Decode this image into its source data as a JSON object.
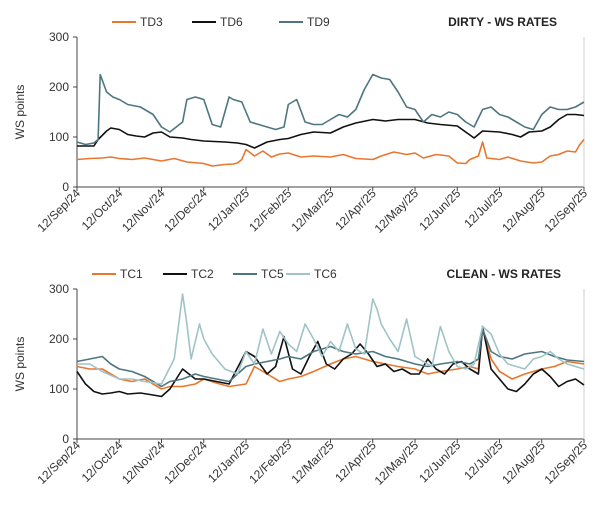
{
  "chart_data": [
    {
      "type": "line",
      "title": "DIRTY - WS RATES",
      "ylabel": "WS points",
      "xlabel": "",
      "ylim": [
        0,
        300
      ],
      "yticks": [
        0,
        100,
        200,
        300
      ],
      "grid": false,
      "legend_position": "top-left",
      "x_tick_labels": [
        "12/Sep/24",
        "12/Oct/24",
        "12/Nov/24",
        "12/Dec/24",
        "12/Jan/25",
        "12/Feb/25",
        "12/Mar/25",
        "12/Apr/25",
        "12/May/25",
        "12/Jun/25",
        "12/Jul/25",
        "12/Aug/25",
        "12/Sep/25"
      ],
      "series": [
        {
          "name": "TD3",
          "color": "#e8772e",
          "x": [
            0,
            0.3,
            0.6,
            0.8,
            1,
            1.3,
            1.6,
            2,
            2.3,
            2.6,
            3,
            3.2,
            3.5,
            3.7,
            3.8,
            3.9,
            4,
            4.2,
            4.4,
            4.6,
            4.8,
            5,
            5.3,
            5.6,
            6,
            6.3,
            6.6,
            7,
            7.2,
            7.5,
            7.8,
            8,
            8.2,
            8.5,
            8.8,
            9,
            9.2,
            9.3,
            9.5,
            9.6,
            9.7,
            10,
            10.2,
            10.5,
            10.8,
            11,
            11.2,
            11.4,
            11.6,
            11.8,
            11.9,
            12
          ],
          "y": [
            55,
            57,
            58,
            60,
            57,
            55,
            58,
            52,
            57,
            50,
            47,
            42,
            45,
            46,
            48,
            55,
            75,
            62,
            72,
            60,
            66,
            68,
            60,
            62,
            60,
            65,
            57,
            55,
            62,
            70,
            65,
            68,
            58,
            65,
            62,
            48,
            47,
            55,
            62,
            90,
            58,
            55,
            60,
            52,
            48,
            50,
            62,
            65,
            72,
            70,
            85,
            95
          ]
        },
        {
          "name": "TD6",
          "color": "#111111",
          "x": [
            0,
            0.4,
            0.5,
            0.7,
            0.8,
            1,
            1.2,
            1.4,
            1.6,
            1.8,
            2,
            2.2,
            2.5,
            2.7,
            3,
            3.5,
            3.8,
            4,
            4.2,
            4.5,
            4.8,
            5,
            5.3,
            5.6,
            6,
            6.3,
            6.6,
            7,
            7.3,
            7.6,
            8,
            8.3,
            8.6,
            9,
            9.4,
            9.6,
            10,
            10.3,
            10.5,
            10.7,
            11,
            11.2,
            11.4,
            11.6,
            11.8,
            12
          ],
          "y": [
            82,
            82,
            95,
            112,
            118,
            115,
            105,
            102,
            100,
            108,
            110,
            100,
            98,
            95,
            92,
            90,
            88,
            85,
            78,
            90,
            95,
            97,
            105,
            110,
            108,
            120,
            128,
            135,
            132,
            135,
            135,
            128,
            125,
            122,
            98,
            112,
            110,
            105,
            100,
            110,
            112,
            120,
            135,
            145,
            145,
            143
          ]
        },
        {
          "name": "TD9",
          "color": "#4e7680",
          "x": [
            0,
            0.2,
            0.4,
            0.5,
            0.55,
            0.7,
            0.85,
            1,
            1.2,
            1.5,
            1.8,
            2,
            2.2,
            2.5,
            2.6,
            2.8,
            3,
            3.2,
            3.4,
            3.6,
            3.7,
            3.9,
            4.1,
            4.3,
            4.5,
            4.7,
            4.9,
            5,
            5.2,
            5.4,
            5.6,
            5.8,
            6,
            6.2,
            6.4,
            6.6,
            6.8,
            7,
            7.2,
            7.4,
            7.6,
            7.8,
            8,
            8.2,
            8.4,
            8.6,
            8.8,
            9,
            9.2,
            9.4,
            9.6,
            9.8,
            10,
            10.2,
            10.4,
            10.6,
            10.8,
            11,
            11.2,
            11.4,
            11.6,
            11.8,
            12
          ],
          "y": [
            90,
            85,
            88,
            95,
            225,
            190,
            180,
            175,
            165,
            160,
            145,
            120,
            110,
            130,
            175,
            180,
            175,
            125,
            120,
            180,
            175,
            170,
            130,
            125,
            120,
            115,
            120,
            165,
            175,
            130,
            125,
            125,
            135,
            145,
            140,
            155,
            195,
            225,
            218,
            215,
            190,
            160,
            155,
            130,
            145,
            140,
            150,
            145,
            130,
            120,
            155,
            160,
            145,
            140,
            130,
            120,
            115,
            145,
            160,
            155,
            155,
            160,
            170
          ]
        }
      ]
    },
    {
      "type": "line",
      "title": "CLEAN - WS RATES",
      "ylabel": "WS points",
      "xlabel": "",
      "ylim": [
        0,
        300
      ],
      "yticks": [
        0,
        100,
        200,
        300
      ],
      "grid": false,
      "legend_position": "top-left",
      "x_tick_labels": [
        "12/Sep/24",
        "12/Oct/24",
        "12/Nov/24",
        "12/Dec/24",
        "12/Jan/25",
        "12/Feb/25",
        "12/Mar/25",
        "12/Apr/25",
        "12/May/25",
        "12/Jun/25",
        "12/Jul/25",
        "12/Aug/25",
        "12/Sep/25"
      ],
      "series": [
        {
          "name": "TC1",
          "color": "#e8772e",
          "x": [
            0,
            0.3,
            0.6,
            1,
            1.3,
            1.6,
            2,
            2.2,
            2.5,
            2.8,
            3,
            3.3,
            3.6,
            4,
            4.2,
            4.5,
            4.8,
            5,
            5.3,
            5.6,
            6,
            6.3,
            6.6,
            7,
            7.3,
            7.6,
            8,
            8.3,
            8.6,
            9,
            9.3,
            9.5,
            9.6,
            9.8,
            10,
            10.3,
            10.6,
            11,
            11.3,
            11.6,
            12
          ],
          "y": [
            145,
            140,
            140,
            120,
            115,
            120,
            100,
            105,
            105,
            110,
            120,
            112,
            105,
            110,
            145,
            130,
            115,
            120,
            125,
            135,
            150,
            160,
            165,
            155,
            150,
            145,
            140,
            130,
            135,
            140,
            145,
            140,
            220,
            160,
            135,
            120,
            130,
            140,
            145,
            155,
            150
          ]
        },
        {
          "name": "TC2",
          "color": "#111111",
          "x": [
            0,
            0.2,
            0.4,
            0.6,
            0.8,
            1,
            1.2,
            1.5,
            1.8,
            2,
            2.2,
            2.5,
            2.8,
            3,
            3.3,
            3.6,
            4,
            4.2,
            4.5,
            4.7,
            4.9,
            5.1,
            5.3,
            5.5,
            5.7,
            5.9,
            6.1,
            6.3,
            6.5,
            6.7,
            6.9,
            7.1,
            7.3,
            7.5,
            7.7,
            7.9,
            8.1,
            8.3,
            8.5,
            8.7,
            8.9,
            9.1,
            9.3,
            9.5,
            9.6,
            9.8,
            10,
            10.2,
            10.4,
            10.6,
            10.8,
            11,
            11.2,
            11.4,
            11.6,
            11.8,
            12
          ],
          "y": [
            135,
            110,
            95,
            90,
            92,
            95,
            90,
            92,
            88,
            85,
            100,
            140,
            120,
            120,
            115,
            110,
            175,
            165,
            130,
            145,
            205,
            140,
            130,
            165,
            195,
            150,
            140,
            160,
            170,
            190,
            170,
            145,
            150,
            135,
            140,
            130,
            130,
            160,
            140,
            130,
            150,
            155,
            140,
            130,
            225,
            140,
            120,
            100,
            95,
            110,
            130,
            140,
            125,
            105,
            115,
            120,
            108
          ]
        },
        {
          "name": "TC5",
          "color": "#4e7680",
          "x": [
            0,
            0.3,
            0.6,
            0.8,
            1,
            1.3,
            1.6,
            2,
            2.2,
            2.5,
            2.8,
            3,
            3.3,
            3.6,
            4,
            4.2,
            4.5,
            4.8,
            5,
            5.3,
            5.6,
            6,
            6.3,
            6.6,
            7,
            7.3,
            7.6,
            8,
            8.3,
            8.6,
            9,
            9.3,
            9.5,
            9.6,
            9.8,
            10,
            10.3,
            10.6,
            11,
            11.3,
            11.6,
            12
          ],
          "y": [
            155,
            160,
            165,
            150,
            140,
            135,
            125,
            105,
            115,
            120,
            130,
            125,
            120,
            115,
            145,
            150,
            155,
            160,
            165,
            160,
            175,
            185,
            175,
            170,
            175,
            165,
            160,
            150,
            145,
            150,
            155,
            150,
            160,
            220,
            175,
            165,
            160,
            170,
            175,
            165,
            158,
            155
          ]
        },
        {
          "name": "TC6",
          "color": "#9fc3c6",
          "x": [
            0,
            0.3,
            0.6,
            1,
            1.3,
            1.6,
            2,
            2.3,
            2.5,
            2.6,
            2.7,
            2.9,
            3,
            3.2,
            3.3,
            3.5,
            3.8,
            4,
            4.2,
            4.4,
            4.6,
            4.8,
            5,
            5.2,
            5.4,
            5.6,
            5.8,
            6,
            6.2,
            6.4,
            6.6,
            6.8,
            7,
            7.1,
            7.2,
            7.4,
            7.6,
            7.8,
            8,
            8.2,
            8.4,
            8.6,
            8.8,
            9,
            9.2,
            9.4,
            9.6,
            9.8,
            10,
            10.2,
            10.4,
            10.6,
            10.8,
            11,
            11.2,
            11.4,
            11.6,
            11.8,
            12
          ],
          "y": [
            150,
            150,
            135,
            120,
            120,
            115,
            110,
            160,
            290,
            230,
            160,
            230,
            200,
            170,
            160,
            140,
            130,
            175,
            150,
            220,
            170,
            215,
            190,
            175,
            230,
            200,
            165,
            195,
            175,
            230,
            180,
            170,
            280,
            260,
            230,
            200,
            175,
            240,
            165,
            155,
            145,
            225,
            175,
            145,
            140,
            150,
            225,
            210,
            170,
            150,
            145,
            140,
            160,
            165,
            175,
            160,
            150,
            145,
            140
          ]
        }
      ]
    }
  ]
}
